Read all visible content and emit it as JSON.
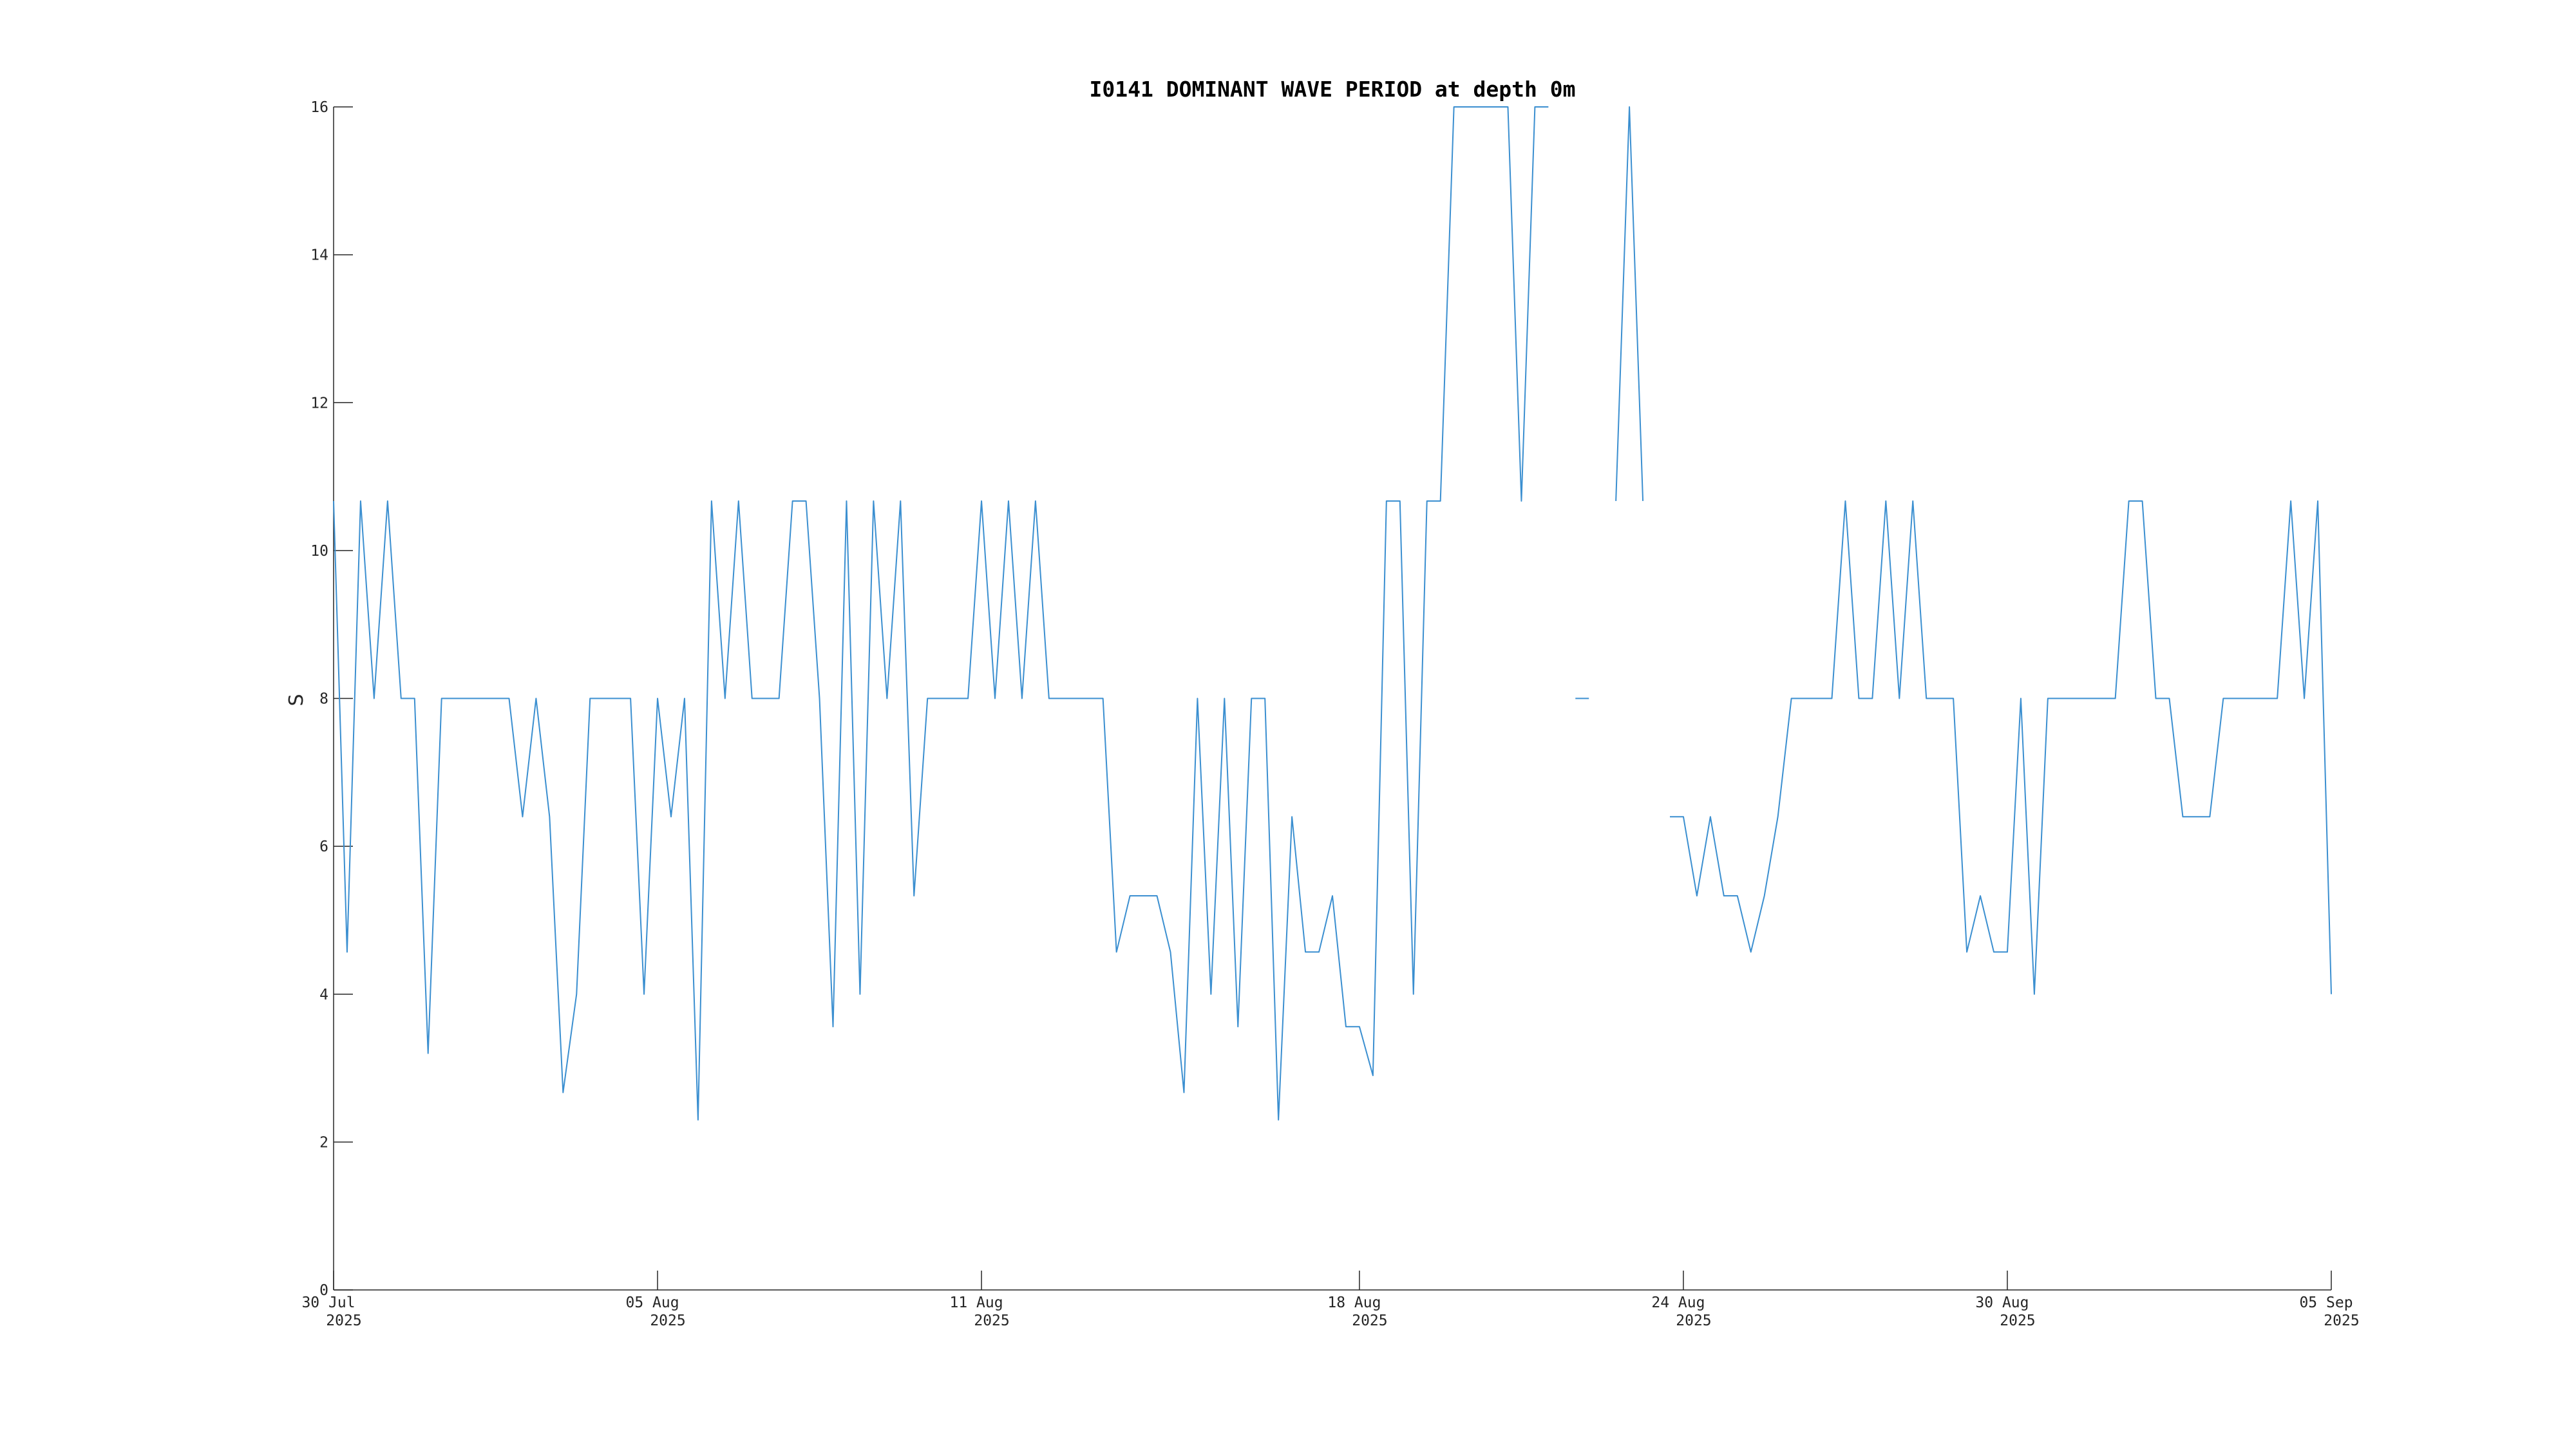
{
  "chart_data": {
    "type": "line",
    "title": "I0141 DOMINANT WAVE PERIOD at depth 0m",
    "y_label": "S",
    "xlim": [
      "2025-07-30",
      "2025-09-05"
    ],
    "xticks": [
      {
        "value": "2025-07-30",
        "label": [
          "30 Jul",
          "2025"
        ]
      },
      {
        "value": "2025-08-05",
        "label": [
          "05 Aug",
          "2025"
        ]
      },
      {
        "value": "2025-08-11",
        "label": [
          "11 Aug",
          "2025"
        ]
      },
      {
        "value": "2025-08-18",
        "label": [
          "18 Aug",
          "2025"
        ]
      },
      {
        "value": "2025-08-24",
        "label": [
          "24 Aug",
          "2025"
        ]
      },
      {
        "value": "2025-08-30",
        "label": [
          "30 Aug",
          "2025"
        ]
      },
      {
        "value": "2025-09-05",
        "label": [
          "05 Sep",
          "2025"
        ]
      }
    ],
    "ylim": [
      0,
      16
    ],
    "yticks": [
      0,
      2,
      4,
      6,
      8,
      10,
      12,
      14,
      16
    ],
    "grid": false,
    "series": [
      {
        "color": "#3b8fd0",
        "x": [
          "2025-07-30T00:00",
          "2025-07-30T06:00",
          "2025-07-30T12:00",
          "2025-07-30T18:00",
          "2025-07-31T00:00",
          "2025-07-31T06:00",
          "2025-07-31T12:00",
          "2025-07-31T18:00",
          "2025-08-01T00:00",
          "2025-08-01T06:00",
          "2025-08-01T12:00",
          "2025-08-01T18:00",
          "2025-08-02T00:00",
          "2025-08-02T06:00",
          "2025-08-02T12:00",
          "2025-08-02T18:00",
          "2025-08-03T00:00",
          "2025-08-03T06:00",
          "2025-08-03T12:00",
          "2025-08-03T18:00",
          "2025-08-04T00:00",
          "2025-08-04T06:00",
          "2025-08-04T12:00",
          "2025-08-04T18:00",
          "2025-08-05T00:00",
          "2025-08-05T06:00",
          "2025-08-05T12:00",
          "2025-08-05T18:00",
          "2025-08-06T00:00",
          "2025-08-06T06:00",
          "2025-08-06T12:00",
          "2025-08-06T18:00",
          "2025-08-07T00:00",
          "2025-08-07T06:00",
          "2025-08-07T12:00",
          "2025-08-07T18:00",
          "2025-08-08T00:00",
          "2025-08-08T06:00",
          "2025-08-08T12:00",
          "2025-08-08T18:00",
          "2025-08-09T00:00",
          "2025-08-09T06:00",
          "2025-08-09T12:00",
          "2025-08-09T18:00",
          "2025-08-10T00:00",
          "2025-08-10T06:00",
          "2025-08-10T12:00",
          "2025-08-10T18:00",
          "2025-08-11T00:00",
          "2025-08-11T06:00",
          "2025-08-11T12:00",
          "2025-08-11T18:00",
          "2025-08-12T00:00",
          "2025-08-12T06:00",
          "2025-08-12T12:00",
          "2025-08-12T18:00",
          "2025-08-13T00:00",
          "2025-08-13T06:00",
          "2025-08-13T12:00",
          "2025-08-13T18:00",
          "2025-08-14T00:00",
          "2025-08-14T06:00",
          "2025-08-14T12:00",
          "2025-08-14T18:00",
          "2025-08-15T00:00",
          "2025-08-15T06:00",
          "2025-08-15T12:00",
          "2025-08-15T18:00",
          "2025-08-16T00:00",
          "2025-08-16T06:00",
          "2025-08-16T12:00",
          "2025-08-16T18:00",
          "2025-08-17T00:00",
          "2025-08-17T06:00",
          "2025-08-17T12:00",
          "2025-08-17T18:00",
          "2025-08-18T00:00",
          "2025-08-18T06:00",
          "2025-08-18T12:00",
          "2025-08-18T18:00",
          "2025-08-19T00:00",
          "2025-08-19T06:00",
          "2025-08-19T12:00",
          "2025-08-19T18:00",
          "2025-08-20T00:00",
          "2025-08-20T06:00",
          "2025-08-20T12:00",
          "2025-08-20T18:00",
          "2025-08-21T00:00",
          "2025-08-21T06:00",
          "2025-08-21T12:00",
          "2025-08-21T18:00",
          "2025-08-22T00:00",
          "2025-08-22T06:00",
          "2025-08-22T12:00",
          "2025-08-22T18:00",
          "2025-08-23T00:00",
          "2025-08-23T06:00",
          "2025-08-23T12:00",
          "2025-08-23T18:00",
          "2025-08-24T00:00",
          "2025-08-24T06:00",
          "2025-08-24T12:00",
          "2025-08-24T18:00",
          "2025-08-25T00:00",
          "2025-08-25T06:00",
          "2025-08-25T12:00",
          "2025-08-25T18:00",
          "2025-08-26T00:00",
          "2025-08-26T06:00",
          "2025-08-26T12:00",
          "2025-08-26T18:00",
          "2025-08-27T00:00",
          "2025-08-27T06:00",
          "2025-08-27T12:00",
          "2025-08-27T18:00",
          "2025-08-28T00:00",
          "2025-08-28T06:00",
          "2025-08-28T12:00",
          "2025-08-28T18:00",
          "2025-08-29T00:00",
          "2025-08-29T06:00",
          "2025-08-29T12:00",
          "2025-08-29T18:00",
          "2025-08-30T00:00",
          "2025-08-30T06:00",
          "2025-08-30T12:00",
          "2025-08-30T18:00",
          "2025-08-31T00:00",
          "2025-08-31T06:00",
          "2025-08-31T12:00",
          "2025-08-31T18:00",
          "2025-09-01T00:00",
          "2025-09-01T06:00",
          "2025-09-01T12:00",
          "2025-09-01T18:00",
          "2025-09-02T00:00",
          "2025-09-02T06:00",
          "2025-09-02T12:00",
          "2025-09-02T18:00",
          "2025-09-03T00:00",
          "2025-09-03T06:00",
          "2025-09-03T12:00",
          "2025-09-03T18:00",
          "2025-09-04T00:00",
          "2025-09-04T06:00",
          "2025-09-04T12:00",
          "2025-09-04T18:00",
          "2025-09-05T00:00"
        ],
        "values": [
          10.67,
          4.57,
          10.67,
          8,
          10.67,
          8,
          8,
          3.2,
          8,
          8,
          8,
          8,
          8,
          8,
          6.4,
          8,
          6.4,
          2.67,
          4,
          8,
          8,
          8,
          8,
          4,
          8,
          6.4,
          8,
          2.3,
          10.67,
          8,
          10.67,
          8,
          8,
          8,
          10.67,
          10.67,
          8,
          3.56,
          10.67,
          4,
          10.67,
          8,
          10.67,
          5.33,
          8,
          8,
          8,
          8,
          10.67,
          8,
          10.67,
          8,
          10.67,
          8,
          8,
          8,
          8,
          8,
          4.57,
          5.33,
          5.33,
          5.33,
          4.57,
          2.67,
          8,
          4,
          8,
          3.56,
          8,
          8,
          2.3,
          6.4,
          4.57,
          4.57,
          5.33,
          3.56,
          3.56,
          2.9,
          10.67,
          10.67,
          4,
          10.67,
          10.67,
          16,
          16,
          16,
          16,
          16,
          10.67,
          16,
          16,
          null,
          8,
          8,
          null,
          10.67,
          16,
          10.67,
          null,
          6.4,
          6.4,
          5.33,
          6.4,
          5.33,
          5.33,
          4.57,
          5.33,
          6.4,
          8,
          8,
          8,
          8,
          10.67,
          8,
          8,
          10.67,
          8,
          10.67,
          8,
          8,
          8,
          4.57,
          5.33,
          4.57,
          4.57,
          8,
          4,
          8,
          8,
          8,
          8,
          8,
          8,
          10.67,
          10.67,
          8,
          8,
          6.4,
          6.4,
          6.4,
          8,
          8,
          8,
          8,
          8,
          10.67,
          8,
          10.67,
          4
        ]
      }
    ]
  }
}
